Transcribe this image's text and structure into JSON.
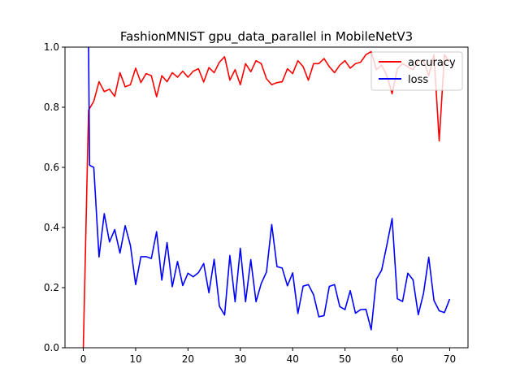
{
  "chart_data": {
    "type": "line",
    "title": "FashionMNIST gpu_data_parallel in MobileNetV3",
    "xlabel": "",
    "ylabel": "",
    "xlim": [
      -3.5,
      73.5
    ],
    "ylim": [
      0.0,
      1.0
    ],
    "xticks": [
      0,
      10,
      20,
      30,
      40,
      50,
      60,
      70
    ],
    "yticks": [
      0.0,
      0.2,
      0.4,
      0.6,
      0.8,
      1.0
    ],
    "xtick_labels": [
      "0",
      "10",
      "20",
      "30",
      "40",
      "50",
      "60",
      "70"
    ],
    "ytick_labels": [
      "0.0",
      "0.2",
      "0.4",
      "0.6",
      "0.8",
      "1.0"
    ],
    "grid": false,
    "legend_position": "top-right",
    "series": [
      {
        "name": "accuracy",
        "color": "#ff0000",
        "x": [
          0,
          1,
          2,
          3,
          4,
          5,
          6,
          7,
          8,
          9,
          10,
          11,
          12,
          13,
          14,
          15,
          16,
          17,
          18,
          19,
          20,
          21,
          22,
          23,
          24,
          25,
          26,
          27,
          28,
          29,
          30,
          31,
          32,
          33,
          34,
          35,
          36,
          37,
          38,
          39,
          40,
          41,
          42,
          43,
          44,
          45,
          46,
          47,
          48,
          49,
          50,
          51,
          52,
          53,
          54,
          55,
          56,
          57,
          58,
          59,
          60,
          61,
          62,
          63,
          64,
          65,
          66,
          67,
          68,
          69,
          70
        ],
        "values": [
          0.0,
          0.79,
          0.82,
          0.885,
          0.852,
          0.86,
          0.836,
          0.915,
          0.868,
          0.875,
          0.93,
          0.882,
          0.912,
          0.905,
          0.835,
          0.905,
          0.885,
          0.915,
          0.9,
          0.92,
          0.9,
          0.92,
          0.928,
          0.884,
          0.932,
          0.915,
          0.95,
          0.968,
          0.89,
          0.925,
          0.875,
          0.945,
          0.918,
          0.955,
          0.945,
          0.895,
          0.875,
          0.882,
          0.885,
          0.928,
          0.912,
          0.955,
          0.935,
          0.89,
          0.945,
          0.945,
          0.962,
          0.935,
          0.915,
          0.94,
          0.955,
          0.93,
          0.945,
          0.95,
          0.975,
          0.985,
          0.925,
          0.94,
          0.905,
          0.845,
          0.928,
          0.945,
          0.935,
          0.925,
          0.955,
          0.955,
          0.905,
          0.975,
          0.688,
          0.975,
          0.95
        ]
      },
      {
        "name": "loss",
        "color": "#0000ff",
        "x": [
          1,
          1.2,
          2,
          3,
          4,
          5,
          6,
          7,
          8,
          9,
          10,
          11,
          12,
          13,
          14,
          15,
          16,
          17,
          18,
          19,
          20,
          21,
          22,
          23,
          24,
          25,
          26,
          27,
          28,
          29,
          30,
          31,
          32,
          33,
          34,
          35,
          36,
          37,
          38,
          39,
          40,
          41,
          42,
          43,
          44,
          45,
          46,
          47,
          48,
          49,
          50,
          51,
          52,
          53,
          54,
          55,
          56,
          57,
          58,
          59,
          60,
          61,
          62,
          63,
          64,
          65,
          66,
          67,
          68,
          69,
          70
        ],
        "values": [
          1.0,
          0.607,
          0.6,
          0.302,
          0.446,
          0.352,
          0.393,
          0.315,
          0.406,
          0.34,
          0.21,
          0.303,
          0.303,
          0.297,
          0.386,
          0.225,
          0.35,
          0.203,
          0.287,
          0.207,
          0.248,
          0.236,
          0.25,
          0.28,
          0.183,
          0.294,
          0.138,
          0.109,
          0.307,
          0.153,
          0.331,
          0.153,
          0.293,
          0.153,
          0.214,
          0.252,
          0.41,
          0.27,
          0.265,
          0.206,
          0.249,
          0.114,
          0.205,
          0.21,
          0.176,
          0.103,
          0.107,
          0.204,
          0.21,
          0.137,
          0.127,
          0.19,
          0.115,
          0.127,
          0.128,
          0.06,
          0.228,
          0.258,
          0.342,
          0.43,
          0.163,
          0.154,
          0.248,
          0.226,
          0.11,
          0.181,
          0.301,
          0.157,
          0.123,
          0.117,
          0.162
        ]
      }
    ]
  }
}
